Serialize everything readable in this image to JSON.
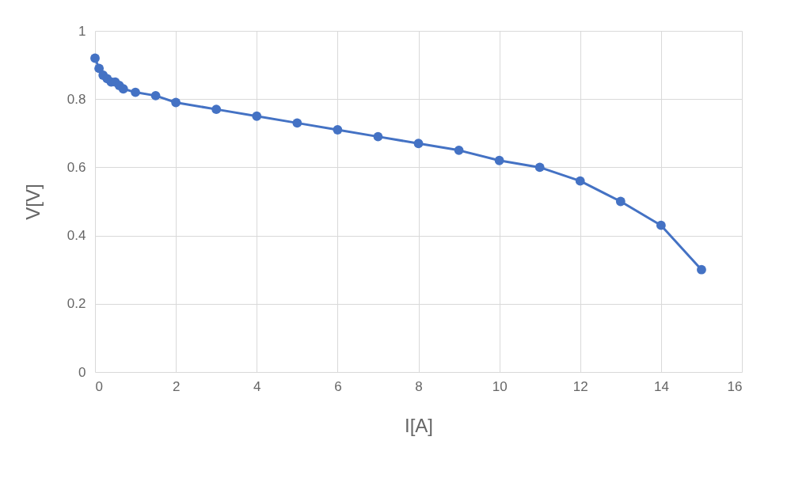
{
  "chart_data": {
    "type": "line",
    "xlabel": "I[A]",
    "ylabel": "V[V]",
    "x": [
      0,
      0.1,
      0.2,
      0.3,
      0.4,
      0.5,
      0.6,
      0.7,
      1,
      1.5,
      2,
      3,
      4,
      5,
      6,
      7,
      8,
      9,
      10,
      11,
      12,
      13,
      14,
      15
    ],
    "series": [
      {
        "color": "#4472c4",
        "values": [
          0.92,
          0.89,
          0.87,
          0.86,
          0.85,
          0.85,
          0.84,
          0.83,
          0.82,
          0.81,
          0.79,
          0.77,
          0.75,
          0.73,
          0.71,
          0.69,
          0.67,
          0.65,
          0.62,
          0.6,
          0.56,
          0.5,
          0.43,
          0.3
        ]
      }
    ],
    "xlim": [
      0,
      16
    ],
    "xticks": [
      0,
      2,
      4,
      6,
      8,
      10,
      12,
      14,
      16
    ],
    "ylim": [
      0,
      1
    ],
    "yticks": [
      0,
      0.2,
      0.4,
      0.6,
      0.8,
      1
    ],
    "grid": true,
    "marker": "circle",
    "line_style": "solid",
    "legend": false
  }
}
